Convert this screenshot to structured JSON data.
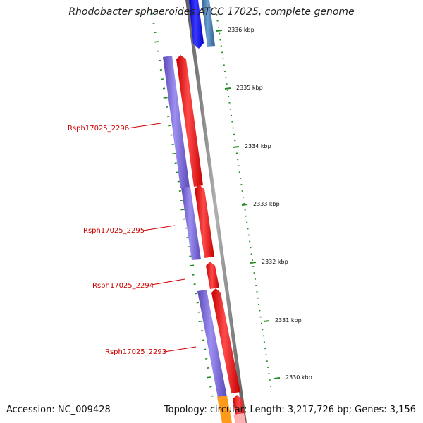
{
  "title": "Rhodobacter sphaeroides ATCC 17025, complete genome",
  "footer": {
    "accession": "Accession: NC_009428",
    "summary": "Topology: circular; Length: 3,217,726 bp; Genes: 3,156"
  },
  "ticks": [
    {
      "label": "2336 kbp",
      "kbp": 2336
    },
    {
      "label": "2335 kbp",
      "kbp": 2335
    },
    {
      "label": "2334 kbp",
      "kbp": 2334
    },
    {
      "label": "2333 kbp",
      "kbp": 2333
    },
    {
      "label": "2332 kbp",
      "kbp": 2332
    },
    {
      "label": "2331 kbp",
      "kbp": 2331
    },
    {
      "label": "2330 kbp",
      "kbp": 2330
    }
  ],
  "gene_labels": [
    {
      "id": "2296",
      "text": "Rsph17025_2296"
    },
    {
      "id": "2295",
      "text": "Rsph17025_2295"
    },
    {
      "id": "2294",
      "text": "Rsph17025_2294"
    },
    {
      "id": "2293",
      "text": "Rsph17025_2293"
    }
  ],
  "colors": {
    "cds_purple": "#7b68d8",
    "gene_red": "#ee1111",
    "gene_blue": "#1a1aee",
    "gene_steel": "#4a7fb5",
    "gene_orange": "#ff9a1a",
    "gene_pink": "#ffb0b0",
    "backbone": "#808080",
    "tick_green": "#228b22",
    "label_red": "#cc0000"
  }
}
